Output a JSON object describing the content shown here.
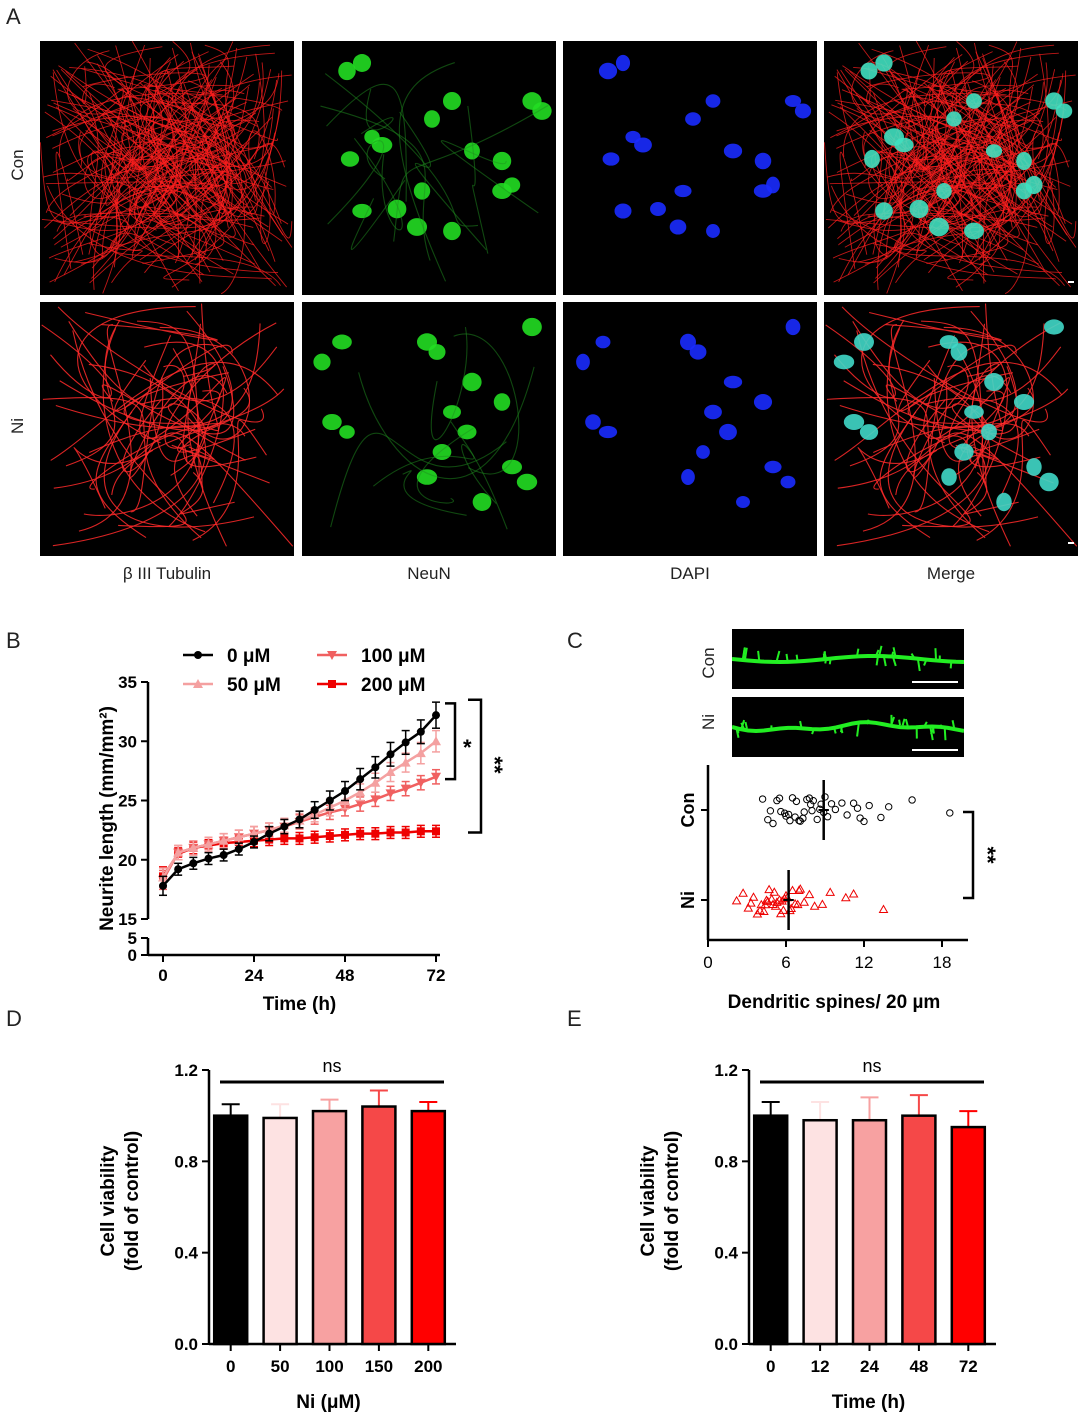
{
  "panels": {
    "A": {
      "letter": "A",
      "rows": [
        "Con",
        "Ni"
      ],
      "columns": [
        "β III Tubulin",
        "NeuN",
        "DAPI",
        "Merge"
      ]
    },
    "B": {
      "letter": "B"
    },
    "C": {
      "letter": "C",
      "images": [
        "Con",
        "Ni"
      ]
    },
    "D": {
      "letter": "D"
    },
    "E": {
      "letter": "E"
    }
  },
  "colors": {
    "black": "#000000",
    "c50": "#f4a0a0",
    "c100": "#f06060",
    "c200": "#ee0000",
    "pale": "#fde2e2",
    "light": "#f7a1a1",
    "mid": "#f54848",
    "red": "#ff0000",
    "green": "#22dd22",
    "blue": "#1a2bff"
  },
  "chart_data": [
    {
      "id": "B",
      "type": "line",
      "xlabel": "Time (h)",
      "ylabel": "Neurite length (mm/mm²)",
      "x": [
        0,
        4,
        8,
        12,
        16,
        20,
        24,
        28,
        32,
        36,
        40,
        44,
        48,
        52,
        56,
        60,
        64,
        68,
        72
      ],
      "x_ticks": [
        0,
        24,
        48,
        72
      ],
      "y_ticks_upper": [
        15,
        20,
        25,
        30,
        35
      ],
      "y_ticks_lower": [
        0,
        5
      ],
      "ylim": [
        15,
        35
      ],
      "axis_break": true,
      "legend": {
        "placement": "top",
        "entries": [
          "0 μM",
          "50 μM",
          "100 μM",
          "200 μM"
        ]
      },
      "series": [
        {
          "name": "0 μM",
          "color": "#000000",
          "marker": "circle",
          "values": [
            17.8,
            19.2,
            19.7,
            20.1,
            20.4,
            20.9,
            21.5,
            22.2,
            22.8,
            23.4,
            24.2,
            25.0,
            25.8,
            26.8,
            27.8,
            28.9,
            29.9,
            30.8,
            32.2
          ],
          "errors": [
            0.8,
            0.5,
            0.5,
            0.5,
            0.5,
            0.5,
            0.5,
            0.6,
            0.6,
            0.7,
            0.7,
            0.8,
            0.8,
            0.9,
            0.9,
            1.0,
            1.0,
            1.0,
            1.1
          ]
        },
        {
          "name": "50 μM",
          "color": "#f4a0a0",
          "marker": "triangle-up",
          "values": [
            18.5,
            20.6,
            21.0,
            21.3,
            21.6,
            21.9,
            22.2,
            22.5,
            22.9,
            23.3,
            23.8,
            24.4,
            25.0,
            25.7,
            26.5,
            27.4,
            28.2,
            29.0,
            30.0
          ],
          "errors": [
            0.8,
            0.6,
            0.6,
            0.6,
            0.6,
            0.6,
            0.6,
            0.6,
            0.6,
            0.6,
            0.6,
            0.7,
            0.7,
            0.7,
            0.8,
            0.8,
            0.8,
            0.9,
            0.9
          ]
        },
        {
          "name": "100 μM",
          "color": "#f06060",
          "marker": "triangle-down",
          "values": [
            18.3,
            20.6,
            21.0,
            21.3,
            21.6,
            21.9,
            22.2,
            22.5,
            22.8,
            23.2,
            23.6,
            24.0,
            24.3,
            24.7,
            25.1,
            25.6,
            26.0,
            26.5,
            27.0
          ],
          "errors": [
            0.8,
            0.6,
            0.6,
            0.6,
            0.6,
            0.6,
            0.6,
            0.6,
            0.6,
            0.6,
            0.6,
            0.6,
            0.6,
            0.6,
            0.6,
            0.6,
            0.6,
            0.6,
            0.6
          ]
        },
        {
          "name": "200 μM",
          "color": "#ee0000",
          "marker": "square",
          "values": [
            18.6,
            20.5,
            21.0,
            21.2,
            21.4,
            21.5,
            21.6,
            21.7,
            21.8,
            21.8,
            21.9,
            22.0,
            22.1,
            22.2,
            22.2,
            22.3,
            22.3,
            22.4,
            22.4
          ],
          "errors": [
            0.8,
            0.5,
            0.5,
            0.5,
            0.5,
            0.5,
            0.5,
            0.5,
            0.5,
            0.5,
            0.5,
            0.5,
            0.5,
            0.5,
            0.5,
            0.5,
            0.5,
            0.5,
            0.5
          ]
        }
      ],
      "annotations": [
        "*",
        "**"
      ]
    },
    {
      "id": "C",
      "type": "scatter",
      "xlabel": "Dendritic spines/ 20 µm",
      "x_ticks": [
        0,
        6,
        12,
        18
      ],
      "xlim": [
        0,
        20
      ],
      "categories": [
        "Con",
        "Ni"
      ],
      "series": [
        {
          "name": "Con",
          "color": "#000000",
          "marker": "circle-open",
          "mean": 8.9,
          "sd": 0.4,
          "values": [
            4.6,
            5.0,
            5.3,
            5.6,
            5.9,
            6.2,
            6.5,
            6.8,
            7.1,
            7.3,
            7.6,
            7.9,
            8.1,
            8.4,
            8.7,
            8.9,
            9.2,
            9.5,
            9.8,
            10.3,
            10.7,
            11.2,
            11.7,
            12.0,
            12.4,
            13.3,
            13.9,
            15.7,
            18.6,
            4.8,
            5.5,
            6.0,
            6.7,
            7.4,
            8.0,
            8.6,
            9.0,
            11.5,
            4.2,
            6.3,
            7.0,
            7.8
          ]
        },
        {
          "name": "Ni",
          "color": "#ee0000",
          "marker": "triangle-open",
          "mean": 6.2,
          "sd": 0.4,
          "values": [
            2.2,
            2.7,
            3.1,
            3.5,
            3.8,
            4.1,
            4.3,
            4.5,
            4.7,
            4.9,
            5.1,
            5.3,
            5.5,
            5.7,
            5.9,
            6.1,
            6.3,
            6.5,
            6.7,
            6.9,
            7.1,
            7.4,
            7.8,
            8.2,
            8.8,
            9.4,
            10.6,
            11.2,
            13.5,
            3.3,
            4.0,
            4.6,
            5.2,
            5.8,
            6.4,
            7.0,
            5.0,
            5.6,
            6.0,
            4.4
          ]
        }
      ],
      "annotations": [
        "**"
      ]
    },
    {
      "id": "D",
      "type": "bar",
      "xlabel": "Ni (μM)",
      "ylabel": "Cell viability (fold of control)",
      "categories": [
        "0",
        "50",
        "100",
        "150",
        "200"
      ],
      "values": [
        1.0,
        0.99,
        1.02,
        1.04,
        1.02
      ],
      "errors": [
        0.05,
        0.06,
        0.05,
        0.07,
        0.04
      ],
      "colors": [
        "#000000",
        "#fde2e2",
        "#f7a1a1",
        "#f54848",
        "#ff0000"
      ],
      "y_ticks": [
        0.0,
        0.4,
        0.8,
        1.2
      ],
      "ylim": [
        0,
        1.2
      ],
      "annotations": [
        "ns"
      ]
    },
    {
      "id": "E",
      "type": "bar",
      "xlabel": "Time (h)",
      "ylabel": "Cell viability (fold of control)",
      "categories": [
        "0",
        "12",
        "24",
        "48",
        "72"
      ],
      "values": [
        1.0,
        0.98,
        0.98,
        1.0,
        0.95
      ],
      "errors": [
        0.06,
        0.08,
        0.1,
        0.09,
        0.07
      ],
      "colors": [
        "#000000",
        "#fde2e2",
        "#f7a1a1",
        "#f54848",
        "#ff0000"
      ],
      "y_ticks": [
        0.0,
        0.4,
        0.8,
        1.2
      ],
      "ylim": [
        0,
        1.2
      ],
      "annotations": [
        "ns"
      ]
    }
  ]
}
